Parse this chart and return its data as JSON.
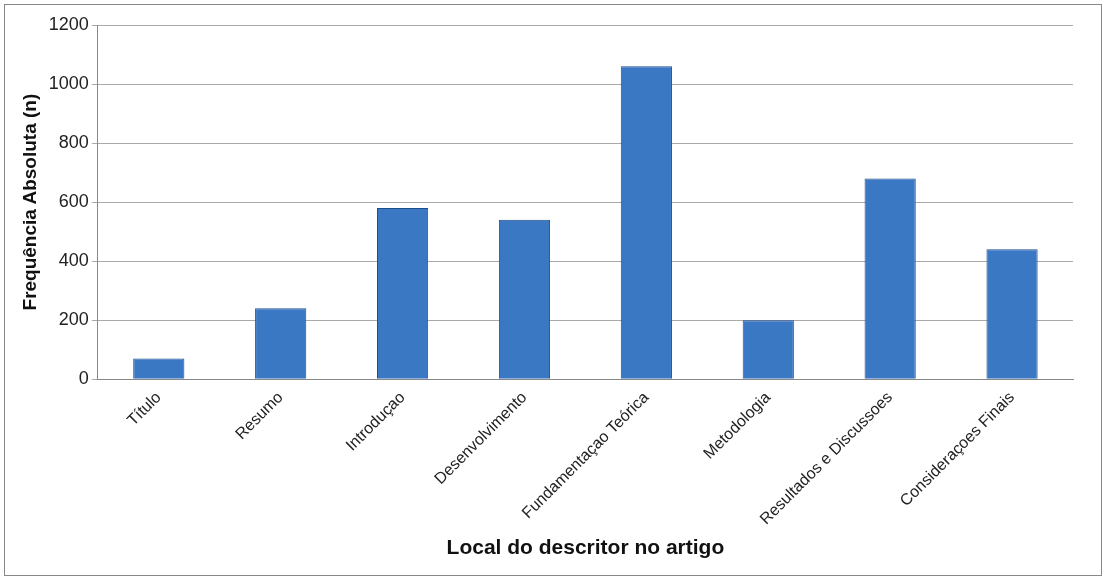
{
  "chart_data": {
    "type": "bar",
    "xlabel": "Local do descritor no artigo",
    "ylabel": "Frequência Absoluta (n)",
    "categories": [
      "Título",
      "Resumo",
      "Introduçao",
      "Desenvolvimento",
      "Fundamentaçao Teórica",
      "Metodologia",
      "Resultados e Discussoes",
      "Consideraçoes Finais"
    ],
    "values": [
      70,
      240,
      580,
      540,
      1060,
      200,
      680,
      440
    ],
    "color": "#3b78c4",
    "ylim": [
      0,
      1200
    ],
    "yticks": [
      0,
      200,
      400,
      600,
      800,
      1000,
      1200
    ],
    "grid": "y",
    "legend": false
  }
}
